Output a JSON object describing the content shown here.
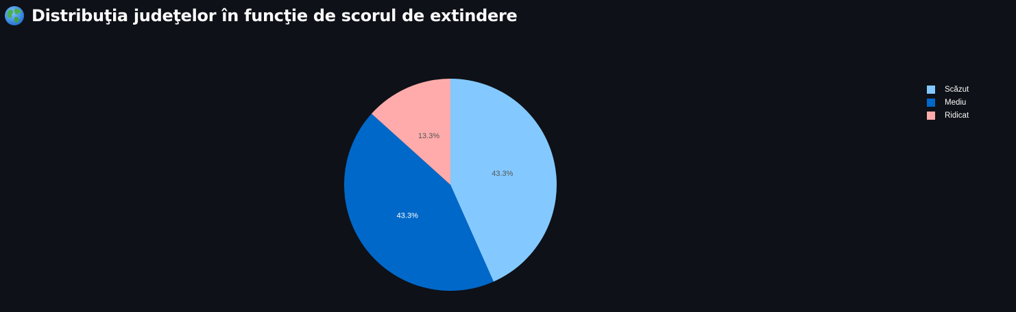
{
  "header": {
    "icon": "globe-icon",
    "title": "Distribuţia judeţelor în funcţie de scorul de extindere"
  },
  "colors": {
    "background": "#0e1117",
    "text": "#fafafa"
  },
  "chart_data": {
    "type": "pie",
    "title": "",
    "categories": [
      "Scăzut",
      "Mediu",
      "Ridicat"
    ],
    "values": [
      43.3,
      43.3,
      13.3
    ],
    "labels": [
      "43.3%",
      "43.3%",
      "13.3%"
    ],
    "colors": [
      "#83c9ff",
      "#0068c9",
      "#ffabab"
    ],
    "label_colors": [
      "#555555",
      "#ffffff",
      "#555555"
    ],
    "direction": "clockwise",
    "start_angle": "top",
    "legend_position": "right"
  }
}
